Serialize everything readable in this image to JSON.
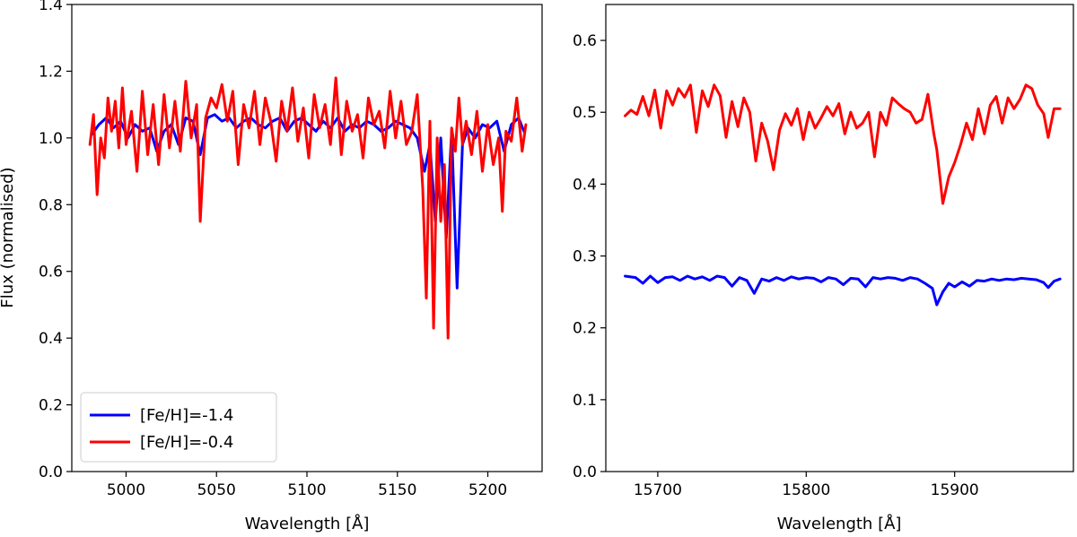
{
  "chart_data": [
    {
      "type": "line",
      "xlabel": "Wavelength [Å]",
      "ylabel": "Flux (normalised)",
      "xlim": [
        4970,
        5230
      ],
      "ylim": [
        0.0,
        1.4
      ],
      "xticks": [
        "5000",
        "5050",
        "5100",
        "5150",
        "5200"
      ],
      "yticks": [
        "0.0",
        "0.2",
        "0.4",
        "0.6",
        "0.8",
        "1.0",
        "1.2",
        "1.4"
      ],
      "legend": "lower-left",
      "grid": false,
      "series": [
        {
          "name": "[Fe/H]=-1.4",
          "color": "#0000ff",
          "x": [
            4981,
            4985,
            4989,
            4993,
            4997,
            5001,
            5005,
            5009,
            5013,
            5017,
            5021,
            5025,
            5029,
            5033,
            5037,
            5041,
            5045,
            5049,
            5053,
            5057,
            5061,
            5065,
            5069,
            5073,
            5077,
            5081,
            5085,
            5089,
            5093,
            5097,
            5101,
            5105,
            5109,
            5113,
            5117,
            5121,
            5125,
            5129,
            5133,
            5137,
            5141,
            5145,
            5149,
            5153,
            5157,
            5161,
            5165,
            5168,
            5171,
            5174,
            5177,
            5180,
            5183,
            5186,
            5189,
            5193,
            5197,
            5201,
            5205,
            5209,
            5213,
            5217,
            5220
          ],
          "y": [
            1.01,
            1.04,
            1.06,
            1.03,
            1.05,
            1.0,
            1.04,
            1.02,
            1.03,
            0.96,
            1.02,
            1.04,
            0.98,
            1.06,
            1.05,
            0.95,
            1.06,
            1.07,
            1.05,
            1.06,
            1.03,
            1.05,
            1.06,
            1.04,
            1.03,
            1.05,
            1.06,
            1.02,
            1.05,
            1.06,
            1.04,
            1.02,
            1.05,
            1.03,
            1.06,
            1.02,
            1.04,
            1.03,
            1.05,
            1.04,
            1.02,
            1.03,
            1.05,
            1.04,
            1.03,
            1.0,
            0.9,
            0.98,
            0.75,
            1.0,
            0.7,
            1.02,
            0.55,
            0.98,
            1.03,
            1.0,
            1.04,
            1.03,
            1.05,
            0.96,
            1.04,
            1.06,
            1.02
          ]
        },
        {
          "name": "[Fe/H]=-0.4",
          "color": "#ff0000",
          "x": [
            4980,
            4982,
            4984,
            4986,
            4988,
            4990,
            4992,
            4994,
            4996,
            4998,
            5000,
            5003,
            5006,
            5009,
            5012,
            5015,
            5018,
            5021,
            5024,
            5027,
            5030,
            5033,
            5036,
            5039,
            5041,
            5044,
            5047,
            5050,
            5053,
            5056,
            5059,
            5062,
            5065,
            5068,
            5071,
            5074,
            5077,
            5080,
            5083,
            5086,
            5089,
            5092,
            5095,
            5098,
            5101,
            5104,
            5107,
            5110,
            5113,
            5116,
            5119,
            5122,
            5125,
            5128,
            5131,
            5134,
            5137,
            5140,
            5143,
            5146,
            5149,
            5152,
            5155,
            5158,
            5161,
            5164,
            5166,
            5168,
            5170,
            5172,
            5174,
            5176,
            5178,
            5180,
            5182,
            5184,
            5186,
            5188,
            5191,
            5194,
            5197,
            5200,
            5203,
            5206,
            5208,
            5210,
            5213,
            5216,
            5219,
            5221
          ],
          "y": [
            0.98,
            1.07,
            0.83,
            1.0,
            0.94,
            1.12,
            1.02,
            1.11,
            0.97,
            1.15,
            0.98,
            1.08,
            0.9,
            1.14,
            0.95,
            1.1,
            0.92,
            1.13,
            0.97,
            1.11,
            0.96,
            1.17,
            1.0,
            1.1,
            0.75,
            1.06,
            1.12,
            1.09,
            1.16,
            1.05,
            1.14,
            0.92,
            1.1,
            1.03,
            1.14,
            0.98,
            1.12,
            1.05,
            0.93,
            1.11,
            1.02,
            1.15,
            0.99,
            1.09,
            0.94,
            1.13,
            1.03,
            1.1,
            0.98,
            1.18,
            0.95,
            1.11,
            1.02,
            1.07,
            0.94,
            1.12,
            1.04,
            1.08,
            0.97,
            1.14,
            1.0,
            1.11,
            0.98,
            1.02,
            1.13,
            0.85,
            0.52,
            1.05,
            0.43,
            1.0,
            0.75,
            0.92,
            0.4,
            1.03,
            0.96,
            1.12,
            0.98,
            1.05,
            0.95,
            1.08,
            0.9,
            1.04,
            0.92,
            1.0,
            0.78,
            1.02,
            0.99,
            1.12,
            0.96,
            1.04
          ]
        }
      ]
    },
    {
      "type": "line",
      "xlabel": "Wavelength [Å]",
      "ylabel": "",
      "xlim": [
        15665,
        15980
      ],
      "ylim": [
        0.0,
        0.65
      ],
      "xticks": [
        "15700",
        "15800",
        "15900"
      ],
      "yticks": [
        "0.0",
        "0.1",
        "0.2",
        "0.3",
        "0.4",
        "0.5",
        "0.6"
      ],
      "grid": false,
      "series": [
        {
          "name": "[Fe/H]=-1.4",
          "color": "#0000ff",
          "x": [
            15678,
            15685,
            15690,
            15695,
            15700,
            15705,
            15710,
            15715,
            15720,
            15725,
            15730,
            15735,
            15740,
            15745,
            15750,
            15755,
            15760,
            15765,
            15770,
            15775,
            15780,
            15785,
            15790,
            15795,
            15800,
            15805,
            15810,
            15815,
            15820,
            15825,
            15830,
            15835,
            15840,
            15845,
            15850,
            15855,
            15860,
            15865,
            15870,
            15875,
            15880,
            15885,
            15888,
            15892,
            15896,
            15900,
            15905,
            15910,
            15915,
            15920,
            15925,
            15930,
            15935,
            15940,
            15945,
            15950,
            15955,
            15960,
            15963,
            15967,
            15971
          ],
          "y": [
            0.272,
            0.27,
            0.262,
            0.272,
            0.263,
            0.27,
            0.271,
            0.266,
            0.272,
            0.268,
            0.271,
            0.266,
            0.272,
            0.27,
            0.258,
            0.27,
            0.266,
            0.248,
            0.268,
            0.265,
            0.27,
            0.266,
            0.271,
            0.268,
            0.27,
            0.269,
            0.264,
            0.27,
            0.268,
            0.26,
            0.269,
            0.268,
            0.257,
            0.27,
            0.268,
            0.27,
            0.269,
            0.266,
            0.27,
            0.268,
            0.262,
            0.255,
            0.232,
            0.25,
            0.262,
            0.257,
            0.264,
            0.258,
            0.266,
            0.265,
            0.268,
            0.266,
            0.268,
            0.267,
            0.269,
            0.268,
            0.267,
            0.263,
            0.256,
            0.265,
            0.268
          ]
        },
        {
          "name": "[Fe/H]=-0.4",
          "color": "#ff0000",
          "x": [
            15678,
            15682,
            15686,
            15690,
            15694,
            15698,
            15702,
            15706,
            15710,
            15714,
            15718,
            15722,
            15726,
            15730,
            15734,
            15738,
            15742,
            15746,
            15750,
            15754,
            15758,
            15762,
            15766,
            15770,
            15774,
            15778,
            15782,
            15786,
            15790,
            15794,
            15798,
            15802,
            15806,
            15810,
            15814,
            15818,
            15822,
            15826,
            15830,
            15834,
            15838,
            15842,
            15846,
            15850,
            15854,
            15858,
            15862,
            15866,
            15870,
            15874,
            15878,
            15882,
            15886,
            15888,
            15892,
            15896,
            15900,
            15904,
            15908,
            15912,
            15916,
            15920,
            15924,
            15928,
            15932,
            15936,
            15940,
            15944,
            15948,
            15952,
            15956,
            15960,
            15963,
            15967,
            15971
          ],
          "y": [
            0.495,
            0.503,
            0.497,
            0.522,
            0.495,
            0.531,
            0.478,
            0.53,
            0.51,
            0.533,
            0.521,
            0.538,
            0.472,
            0.53,
            0.508,
            0.538,
            0.523,
            0.465,
            0.515,
            0.48,
            0.52,
            0.5,
            0.432,
            0.485,
            0.46,
            0.42,
            0.475,
            0.498,
            0.482,
            0.505,
            0.462,
            0.5,
            0.478,
            0.492,
            0.508,
            0.495,
            0.512,
            0.47,
            0.5,
            0.478,
            0.485,
            0.5,
            0.438,
            0.5,
            0.482,
            0.52,
            0.512,
            0.505,
            0.5,
            0.485,
            0.49,
            0.525,
            0.47,
            0.448,
            0.373,
            0.41,
            0.43,
            0.455,
            0.485,
            0.462,
            0.505,
            0.47,
            0.51,
            0.522,
            0.485,
            0.52,
            0.505,
            0.518,
            0.538,
            0.533,
            0.51,
            0.498,
            0.465,
            0.505,
            0.505
          ]
        }
      ]
    }
  ]
}
